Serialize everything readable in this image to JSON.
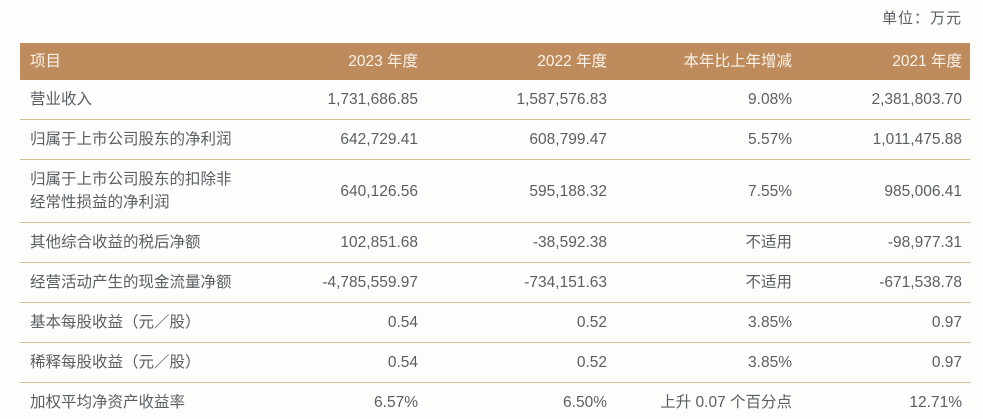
{
  "unit_label": "单位：万元",
  "colors": {
    "header_background": "#be8b5d",
    "header_text": "#faf3ea",
    "body_text": "#5a5f64",
    "row_divider": "#d9bd97",
    "bottom_border": "#b8865a"
  },
  "table": {
    "headers": [
      "项目",
      "2023 年度",
      "2022 年度",
      "本年比上年增减",
      "2021 年度"
    ],
    "rows": [
      [
        "营业收入",
        "1,731,686.85",
        "1,587,576.83",
        "9.08%",
        "2,381,803.70"
      ],
      [
        "归属于上市公司股东的净利润",
        "642,729.41",
        "608,799.47",
        "5.57%",
        "1,011,475.88"
      ],
      [
        "归属于上市公司股东的扣除非经常性损益的净利润",
        "640,126.56",
        "595,188.32",
        "7.55%",
        "985,006.41"
      ],
      [
        "其他综合收益的税后净额",
        "102,851.68",
        "-38,592.38",
        "不适用",
        "-98,977.31"
      ],
      [
        "经营活动产生的现金流量净额",
        "-4,785,559.97",
        "-734,151.63",
        "不适用",
        "-671,538.78"
      ],
      [
        "基本每股收益（元／股）",
        "0.54",
        "0.52",
        "3.85%",
        "0.97"
      ],
      [
        "稀释每股收益（元／股）",
        "0.54",
        "0.52",
        "3.85%",
        "0.97"
      ],
      [
        "加权平均净资产收益率",
        "6.57%",
        "6.50%",
        "上升 0.07 个百分点",
        "12.71%"
      ]
    ]
  }
}
